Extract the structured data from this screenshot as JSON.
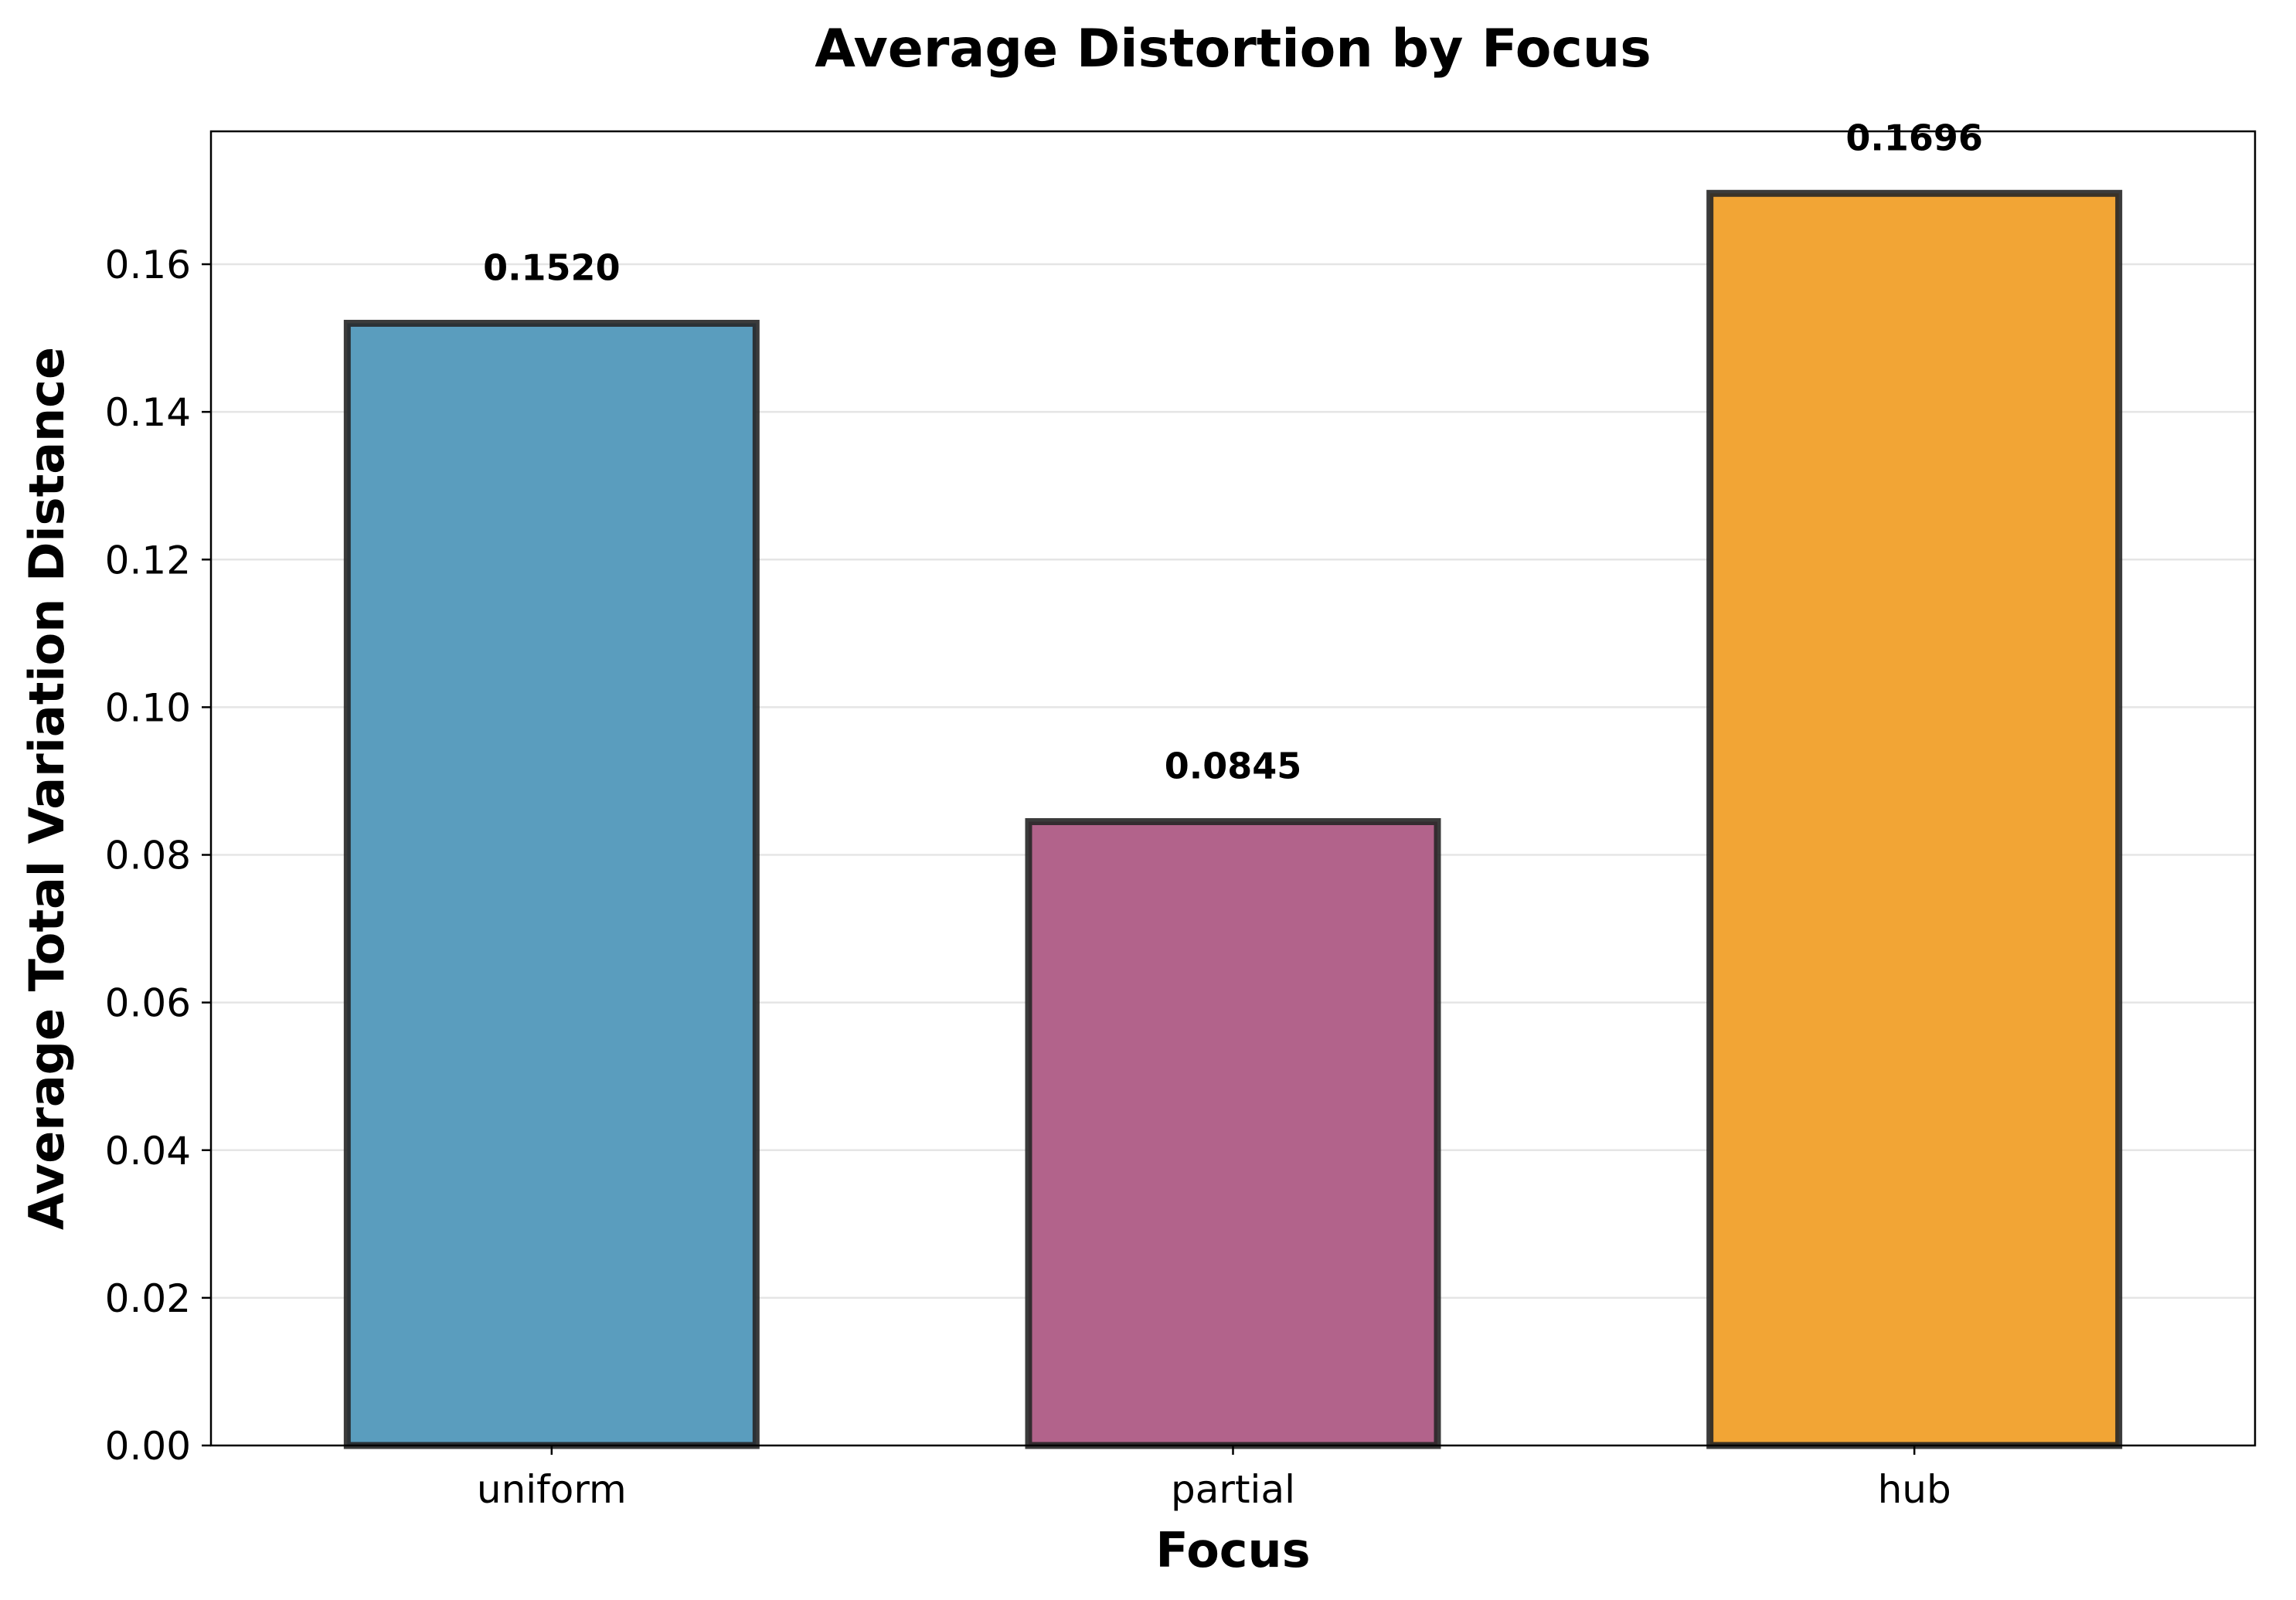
{
  "chart_data": {
    "type": "bar",
    "title": "Average Distortion by Focus",
    "xlabel": "Focus",
    "ylabel": "Average Total Variation Distance",
    "categories": [
      "uniform",
      "partial",
      "hub"
    ],
    "values": [
      0.152,
      0.0845,
      0.1696
    ],
    "value_labels": [
      "0.1520",
      "0.0845",
      "0.1696"
    ],
    "colors": [
      "#5a9dbe",
      "#b2638b",
      "#f2a535"
    ],
    "ylim": [
      0,
      0.178
    ],
    "yticks": [
      0.0,
      0.02,
      0.04,
      0.06,
      0.08,
      0.1,
      0.12,
      0.14,
      0.16
    ],
    "ytick_labels": [
      "0.00",
      "0.02",
      "0.04",
      "0.06",
      "0.08",
      "0.10",
      "0.12",
      "0.14",
      "0.16"
    ],
    "grid": "y",
    "legend": "none"
  }
}
